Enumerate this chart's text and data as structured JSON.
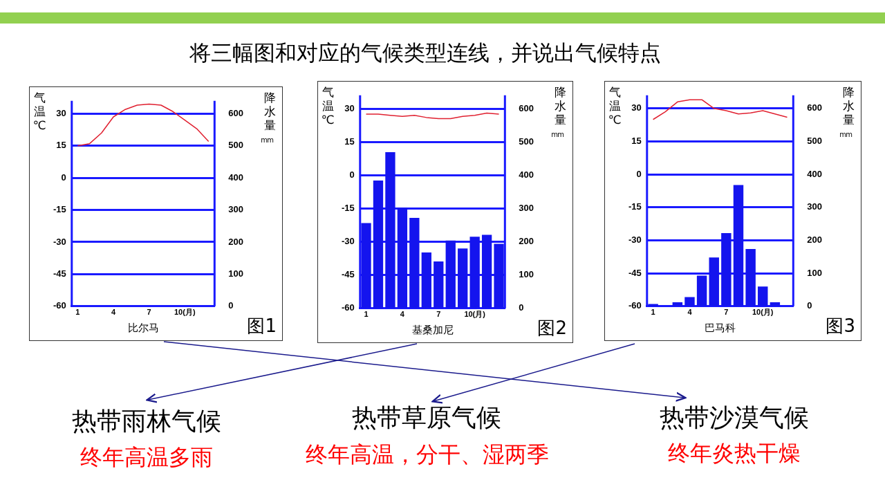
{
  "chart_data": [
    {
      "type": "other",
      "title": "将三幅图和对应的气候类型连线，并说出气候特点"
    },
    {
      "type": "line",
      "xlabel": "比尔马",
      "ylabel": "气温℃",
      "y2label": "降水量mm",
      "annotations": [
        "图1"
      ],
      "categories": [
        "1",
        null,
        null,
        "4",
        null,
        null,
        "7",
        null,
        null,
        "10(月)",
        null,
        null
      ],
      "series": [
        {
          "type": "line",
          "color": "#e02030",
          "values": [
            15,
            16,
            21,
            28.5,
            32,
            34,
            34.5,
            34,
            31,
            27,
            23,
            17
          ]
        }
      ],
      "ylim": [
        -60,
        36
      ],
      "yticks": [
        -60,
        -45,
        -30,
        -15,
        0,
        15,
        30
      ],
      "y2lim": [
        0,
        640
      ],
      "y2ticks": [
        0,
        100,
        200,
        300,
        400,
        500,
        600
      ],
      "grid": "y",
      "legend": false,
      "marker": "none"
    },
    {
      "type": "bar",
      "xlabel": "基桑加尼",
      "ylabel": "气温℃",
      "y2label": "降水量mm",
      "annotations": [
        "图2"
      ],
      "categories": [
        "1",
        null,
        null,
        "4",
        null,
        null,
        "7",
        null,
        null,
        "10(月)",
        null,
        null
      ],
      "series": [
        {
          "type": "bar",
          "axis": "y2",
          "color": "#1414ee",
          "values": [
            256,
            384,
            469,
            302,
            272,
            168,
            141,
            204,
            180,
            215,
            221,
            194
          ]
        },
        {
          "type": "line",
          "color": "#e02030",
          "values": [
            27.5,
            27.5,
            27,
            26.5,
            27,
            26,
            25.5,
            25.5,
            26.5,
            27,
            28,
            27.5
          ]
        }
      ],
      "ylim": [
        -60,
        36
      ],
      "yticks": [
        -60,
        -45,
        -30,
        -15,
        0,
        15,
        30
      ],
      "y2lim": [
        0,
        640
      ],
      "y2ticks": [
        0,
        100,
        200,
        300,
        400,
        500,
        600
      ],
      "grid": "y",
      "legend": false,
      "marker": "none"
    },
    {
      "type": "bar",
      "xlabel": "巴马科",
      "ylabel": "气温℃",
      "y2label": "降水量mm",
      "annotations": [
        "图3"
      ],
      "categories": [
        "1",
        null,
        null,
        "4",
        null,
        null,
        "7",
        null,
        null,
        "10(月)",
        null,
        null
      ],
      "series": [
        {
          "type": "bar",
          "axis": "y2",
          "color": "#1414ee",
          "values": [
            7,
            null,
            12,
            28,
            93,
            148,
            222,
            368,
            174,
            60,
            12,
            null
          ]
        },
        {
          "type": "line",
          "color": "#e02030",
          "values": [
            25,
            28.5,
            33,
            34,
            34,
            30,
            29,
            27.5,
            28,
            29,
            27.5,
            26
          ]
        }
      ],
      "ylim": [
        -60,
        36
      ],
      "yticks": [
        -60,
        -45,
        -30,
        -15,
        0,
        15,
        30
      ],
      "y2lim": [
        0,
        640
      ],
      "y2ticks": [
        0,
        100,
        200,
        300,
        400,
        500,
        600
      ],
      "grid": "y",
      "legend": false,
      "marker": "none"
    },
    {
      "type": "other",
      "annotations": [
        "热带雨林气候",
        "终年高温多雨",
        "热带草原气候",
        "终年高温，分干、湿两季",
        "热带沙漠气候",
        "终年炎热干燥"
      ]
    }
  ]
}
